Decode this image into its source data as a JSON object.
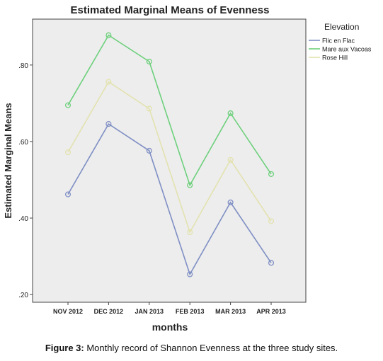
{
  "chart_data": {
    "type": "line",
    "title": "Estimated Marginal Means of Evenness",
    "xlabel": "months",
    "ylabel": "Estimated Marginal Means",
    "categories": [
      "NOV 2012",
      "DEC 2012",
      "JAN 2013",
      "FEB 2013",
      "MAR 2013",
      "APR 2013"
    ],
    "yticks": [
      ".20",
      ".40",
      ".60",
      ".80"
    ],
    "ylim": [
      0.18,
      0.92
    ],
    "legend_title": "Elevation",
    "legend_position": "right",
    "grid": false,
    "series": [
      {
        "name": "Flic en Flac",
        "color": "#7f8fc4",
        "values": [
          0.462,
          0.646,
          0.576,
          0.253,
          0.441,
          0.283
        ]
      },
      {
        "name": "Mare aux Vacoas",
        "color": "#6dd07c",
        "values": [
          0.695,
          0.878,
          0.809,
          0.486,
          0.674,
          0.515
        ]
      },
      {
        "name": "Rose Hill",
        "color": "#e3e2b0",
        "values": [
          0.572,
          0.756,
          0.686,
          0.363,
          0.552,
          0.392
        ]
      }
    ]
  },
  "caption": {
    "label": "Figure 3:",
    "text": " Monthly record of Shannon Evenness at the three study sites."
  }
}
